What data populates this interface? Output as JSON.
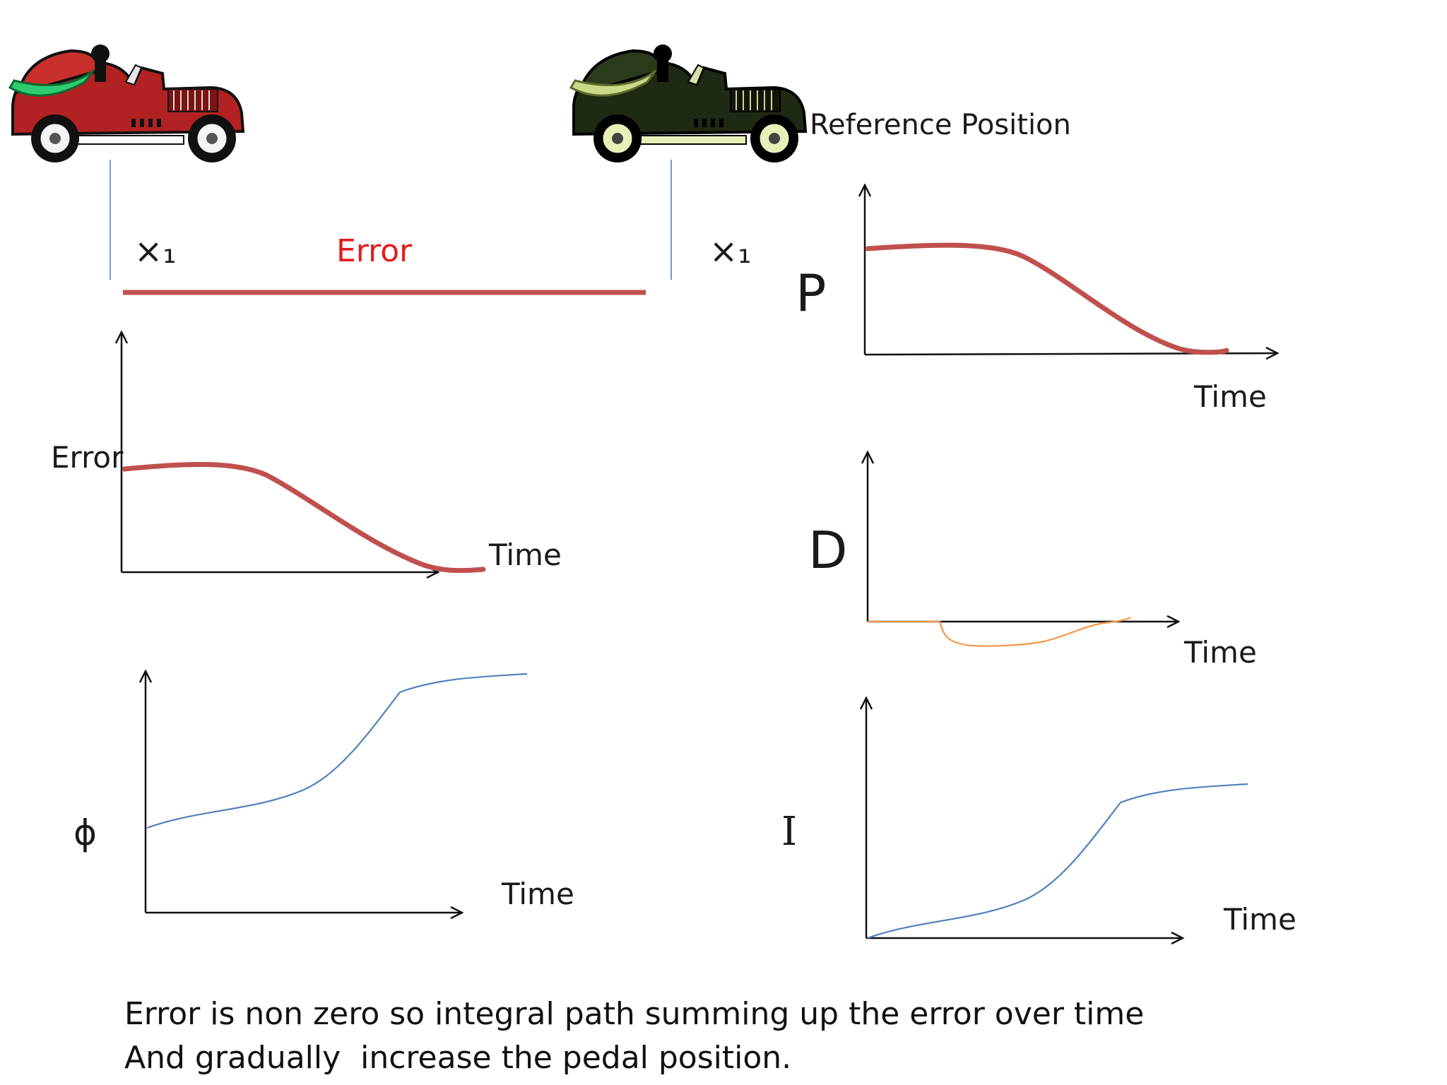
{
  "top": {
    "reference_label": "Reference Position",
    "error_label": "Error",
    "x1_left": "×₁",
    "x1_right": "×₁"
  },
  "charts": {
    "error": {
      "ylabel": "Error",
      "xlabel": "Time"
    },
    "phi": {
      "ylabel": "ϕ",
      "xlabel": "Time"
    },
    "p": {
      "ylabel": "P",
      "xlabel": "Time"
    },
    "d": {
      "ylabel": "D",
      "xlabel": "Time"
    },
    "i": {
      "ylabel": "I",
      "xlabel": "Time"
    }
  },
  "caption": {
    "line1": "Error is non zero so integral path summing up the error over time",
    "line2": "And gradually  increase the pedal position."
  },
  "colors": {
    "curve_red": "#c0504d",
    "curve_blue": "#4f81bd",
    "curve_orange": "#f79646",
    "error_text": "#e31b1b",
    "car_actual": "#b22222",
    "car_reference": "#1f2a14"
  },
  "icons": {
    "car_actual": "red-racing-car-icon",
    "car_reference": "dark-racing-car-icon"
  }
}
